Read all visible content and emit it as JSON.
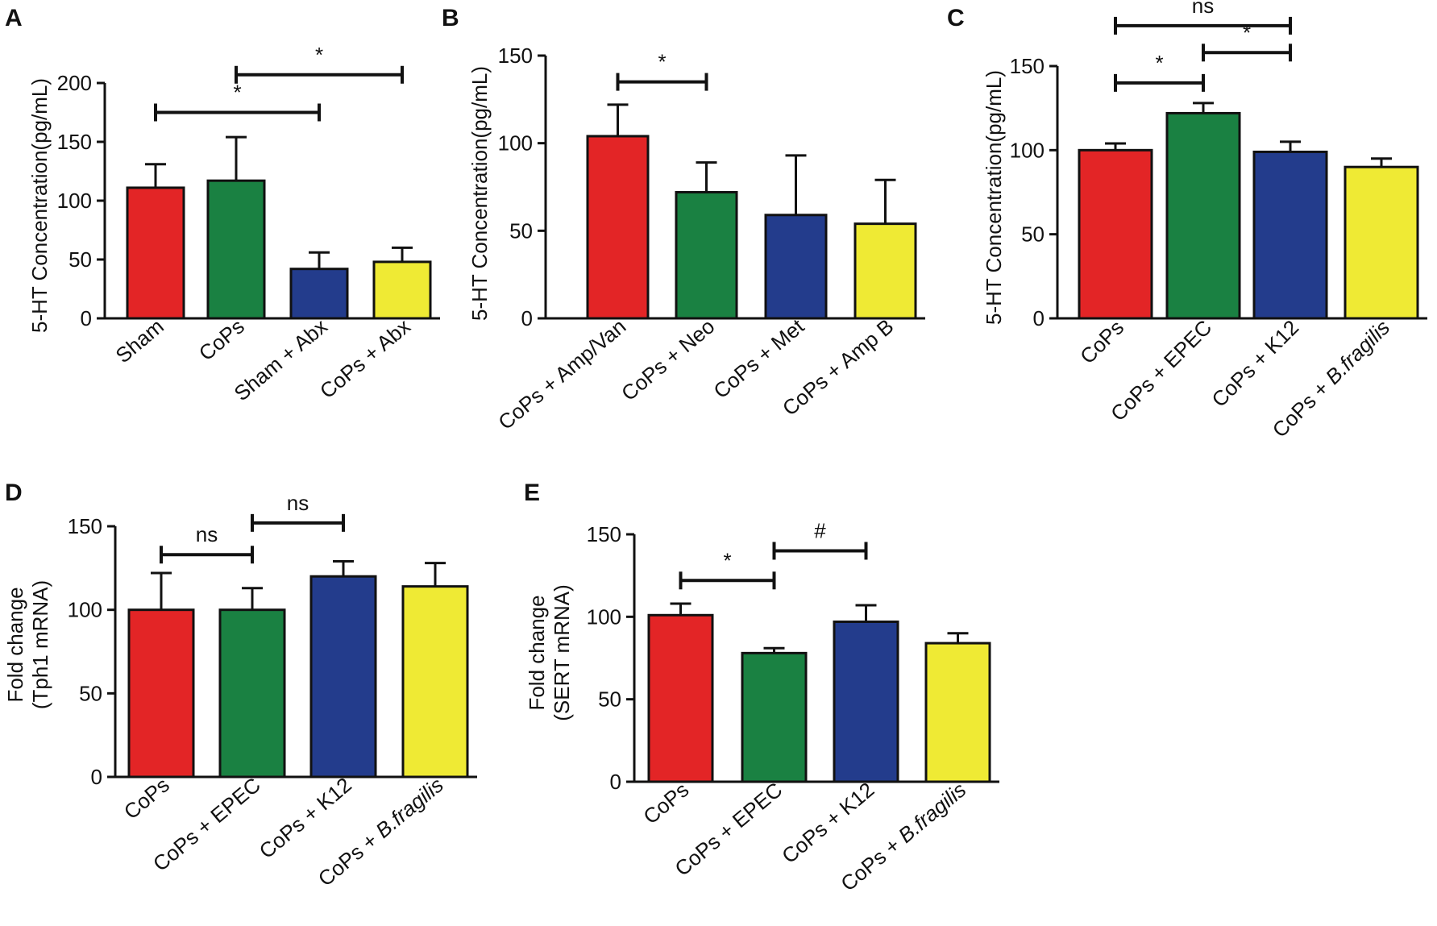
{
  "colors": {
    "red": "#e32526",
    "green": "#1a8142",
    "blue": "#233c8c",
    "yellow": "#efea34",
    "ink": "#111111"
  },
  "chart_data": [
    {
      "panel": "A",
      "type": "bar",
      "title": "",
      "xlabel": "",
      "ylabel": "5-HT Concentration(pg/mL)",
      "ylim": [
        0,
        200
      ],
      "yticks": [
        0,
        50,
        100,
        150,
        200
      ],
      "categories": [
        "Sham",
        "CoPs",
        "Sham + Abx",
        "CoPs + Abx"
      ],
      "values": [
        111,
        117,
        42,
        48
      ],
      "errors": [
        20,
        37,
        14,
        12
      ],
      "bar_colors": [
        "red",
        "green",
        "blue",
        "yellow"
      ],
      "significance": [
        {
          "from": 0,
          "to": 2,
          "label": "*",
          "y": 175
        },
        {
          "from": 1,
          "to": 3,
          "label": "*",
          "y": 207
        }
      ]
    },
    {
      "panel": "B",
      "type": "bar",
      "title": "",
      "xlabel": "",
      "ylabel": "5-HT Concentration(pg/mL)",
      "ylim": [
        0,
        150
      ],
      "yticks": [
        0,
        50,
        100,
        150
      ],
      "categories": [
        "CoPs + Amp/Van",
        "CoPs + Neo",
        "CoPs + Met",
        "CoPs + Amp B"
      ],
      "values": [
        104,
        72,
        59,
        54
      ],
      "errors": [
        18,
        17,
        34,
        25
      ],
      "bar_colors": [
        "red",
        "green",
        "blue",
        "yellow"
      ],
      "significance": [
        {
          "from": 0,
          "to": 1,
          "label": "*",
          "y": 135
        }
      ]
    },
    {
      "panel": "C",
      "type": "bar",
      "title": "",
      "xlabel": "",
      "ylabel": "5-HT Concentration(pg/mL)",
      "ylim": [
        0,
        150
      ],
      "yticks": [
        0,
        50,
        100,
        150
      ],
      "categories": [
        "CoPs",
        "CoPs + EPEC",
        "CoPs + K12",
        "CoPs + B.fragilis"
      ],
      "italic_suffix": "B.fragilis",
      "values": [
        100,
        122,
        99,
        90
      ],
      "errors": [
        4,
        6,
        6,
        5
      ],
      "bar_colors": [
        "red",
        "green",
        "blue",
        "yellow"
      ],
      "significance": [
        {
          "from": 0,
          "to": 1,
          "label": "*",
          "y": 140
        },
        {
          "from": 1,
          "to": 2,
          "label": "*",
          "y": 158
        },
        {
          "from": 0,
          "to": 2,
          "label": "ns",
          "y": 174
        }
      ]
    },
    {
      "panel": "D",
      "type": "bar",
      "title": "",
      "xlabel": "",
      "ylabel": "Fold change",
      "ylabel2": "(Tph1 mRNA)",
      "ylim": [
        0,
        150
      ],
      "yticks": [
        0,
        50,
        100,
        150
      ],
      "categories": [
        "CoPs",
        "CoPs + EPEC",
        "CoPs + K12",
        "CoPs + B.fragilis"
      ],
      "italic_suffix": "B.fragilis",
      "values": [
        100,
        100,
        120,
        114
      ],
      "errors": [
        22,
        13,
        9,
        14
      ],
      "bar_colors": [
        "red",
        "green",
        "blue",
        "yellow"
      ],
      "significance": [
        {
          "from": 0,
          "to": 1,
          "label": "ns",
          "y": 133
        },
        {
          "from": 1,
          "to": 2,
          "label": "ns",
          "y": 152
        }
      ]
    },
    {
      "panel": "E",
      "type": "bar",
      "title": "",
      "xlabel": "",
      "ylabel": "Fold change",
      "ylabel2": "(SERT mRNA)",
      "ylim": [
        0,
        150
      ],
      "yticks": [
        0,
        50,
        100,
        150
      ],
      "categories": [
        "CoPs",
        "CoPs + EPEC",
        "CoPs + K12",
        "CoPs + B.fragilis"
      ],
      "italic_suffix": "B.fragilis",
      "values": [
        101,
        78,
        97,
        84
      ],
      "errors": [
        7,
        3,
        10,
        6
      ],
      "bar_colors": [
        "red",
        "green",
        "blue",
        "yellow"
      ],
      "significance": [
        {
          "from": 0,
          "to": 1,
          "label": "*",
          "y": 122
        },
        {
          "from": 1,
          "to": 2,
          "label": "#",
          "y": 140
        }
      ]
    }
  ]
}
